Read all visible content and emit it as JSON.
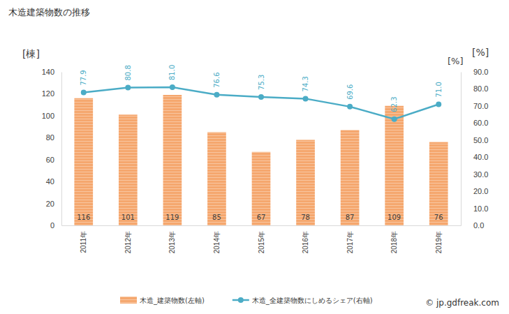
{
  "chart_data": {
    "type": "bar",
    "title": "木造建築物数の推移",
    "categories": [
      "2011年",
      "2012年",
      "2013年",
      "2014年",
      "2015年",
      "2016年",
      "2017年",
      "2018年",
      "2019年"
    ],
    "series": [
      {
        "name": "木造_建築物数(左軸)",
        "type": "bar",
        "color": "#f5a76e",
        "data_labels": true,
        "values": [
          116,
          101,
          119,
          85,
          67,
          78,
          87,
          109,
          76
        ]
      },
      {
        "name": "木造_全建築物数にしめるシェア(右軸)",
        "type": "line",
        "axis": "y2",
        "color": "#4bacc6",
        "marker": "circle",
        "data_labels": true,
        "values": [
          77.9,
          80.8,
          81.0,
          76.6,
          75.3,
          74.3,
          69.6,
          62.3,
          71.0
        ],
        "value_labels": [
          "77.9",
          "80.8",
          "81.0",
          "76.6",
          "75.3",
          "74.3",
          "69.6",
          "62.3",
          "71.0"
        ]
      }
    ],
    "ylim": [
      0,
      140
    ],
    "yticks": [
      0,
      20,
      40,
      60,
      80,
      100,
      120,
      140
    ],
    "y2lim": [
      0,
      90
    ],
    "y2ticks": [
      {
        "value": 0,
        "label": "0.0"
      },
      {
        "value": 10,
        "label": "10.0"
      },
      {
        "value": 20,
        "label": "20.0"
      },
      {
        "value": 30,
        "label": "30.0"
      },
      {
        "value": 40,
        "label": "40.0"
      },
      {
        "value": 50,
        "label": "50.0"
      },
      {
        "value": 60,
        "label": "60.0"
      },
      {
        "value": 70,
        "label": "70.0"
      },
      {
        "value": 80,
        "label": "80.0"
      },
      {
        "value": 90,
        "label": "90.0"
      }
    ],
    "y_label": "[棟]",
    "y2_label": "[%]",
    "annotations": [
      "[%]"
    ],
    "source": "© jp.gdfreak.com",
    "legend": "bottom",
    "grid": false
  }
}
